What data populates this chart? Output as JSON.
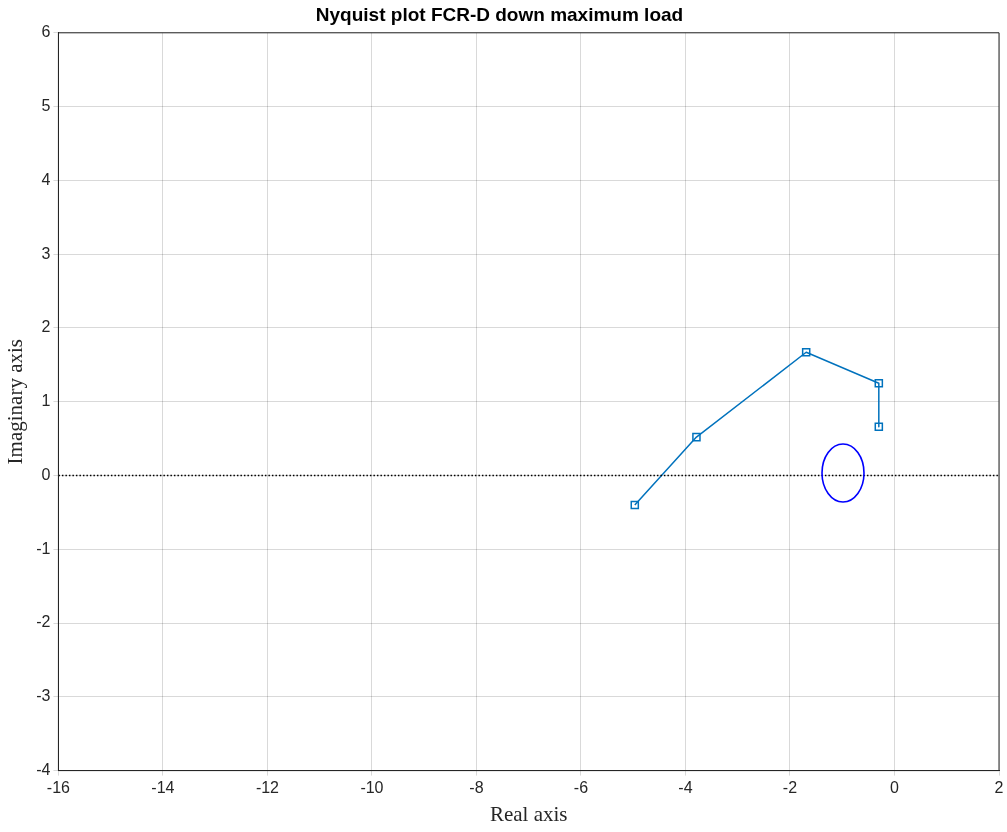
{
  "chart_data": {
    "type": "line",
    "title": "Nyquist plot FCR-D down maximum load",
    "xlabel": "Real axis",
    "ylabel": "Imaginary axis",
    "xlim": [
      -16,
      2
    ],
    "xticks": [
      -16,
      -14,
      -12,
      -10,
      -8,
      -6,
      -4,
      -2,
      0,
      2
    ],
    "ylim": [
      -4,
      6
    ],
    "yticks": [
      -4,
      -3,
      -2,
      -1,
      0,
      1,
      2,
      3,
      4,
      5,
      6
    ],
    "grid": true,
    "legend": false,
    "series": [
      {
        "color": "#0072bd",
        "marker": "square",
        "x": [
          -4.97,
          -3.79,
          -1.69,
          -0.3,
          -0.3
        ],
        "values": [
          -0.4,
          0.52,
          1.67,
          1.25,
          0.66
        ]
      }
    ],
    "ref_lines": [
      {
        "axis": "y",
        "value": 0,
        "color": "#000000",
        "line_style": "dotted"
      }
    ]
  }
}
